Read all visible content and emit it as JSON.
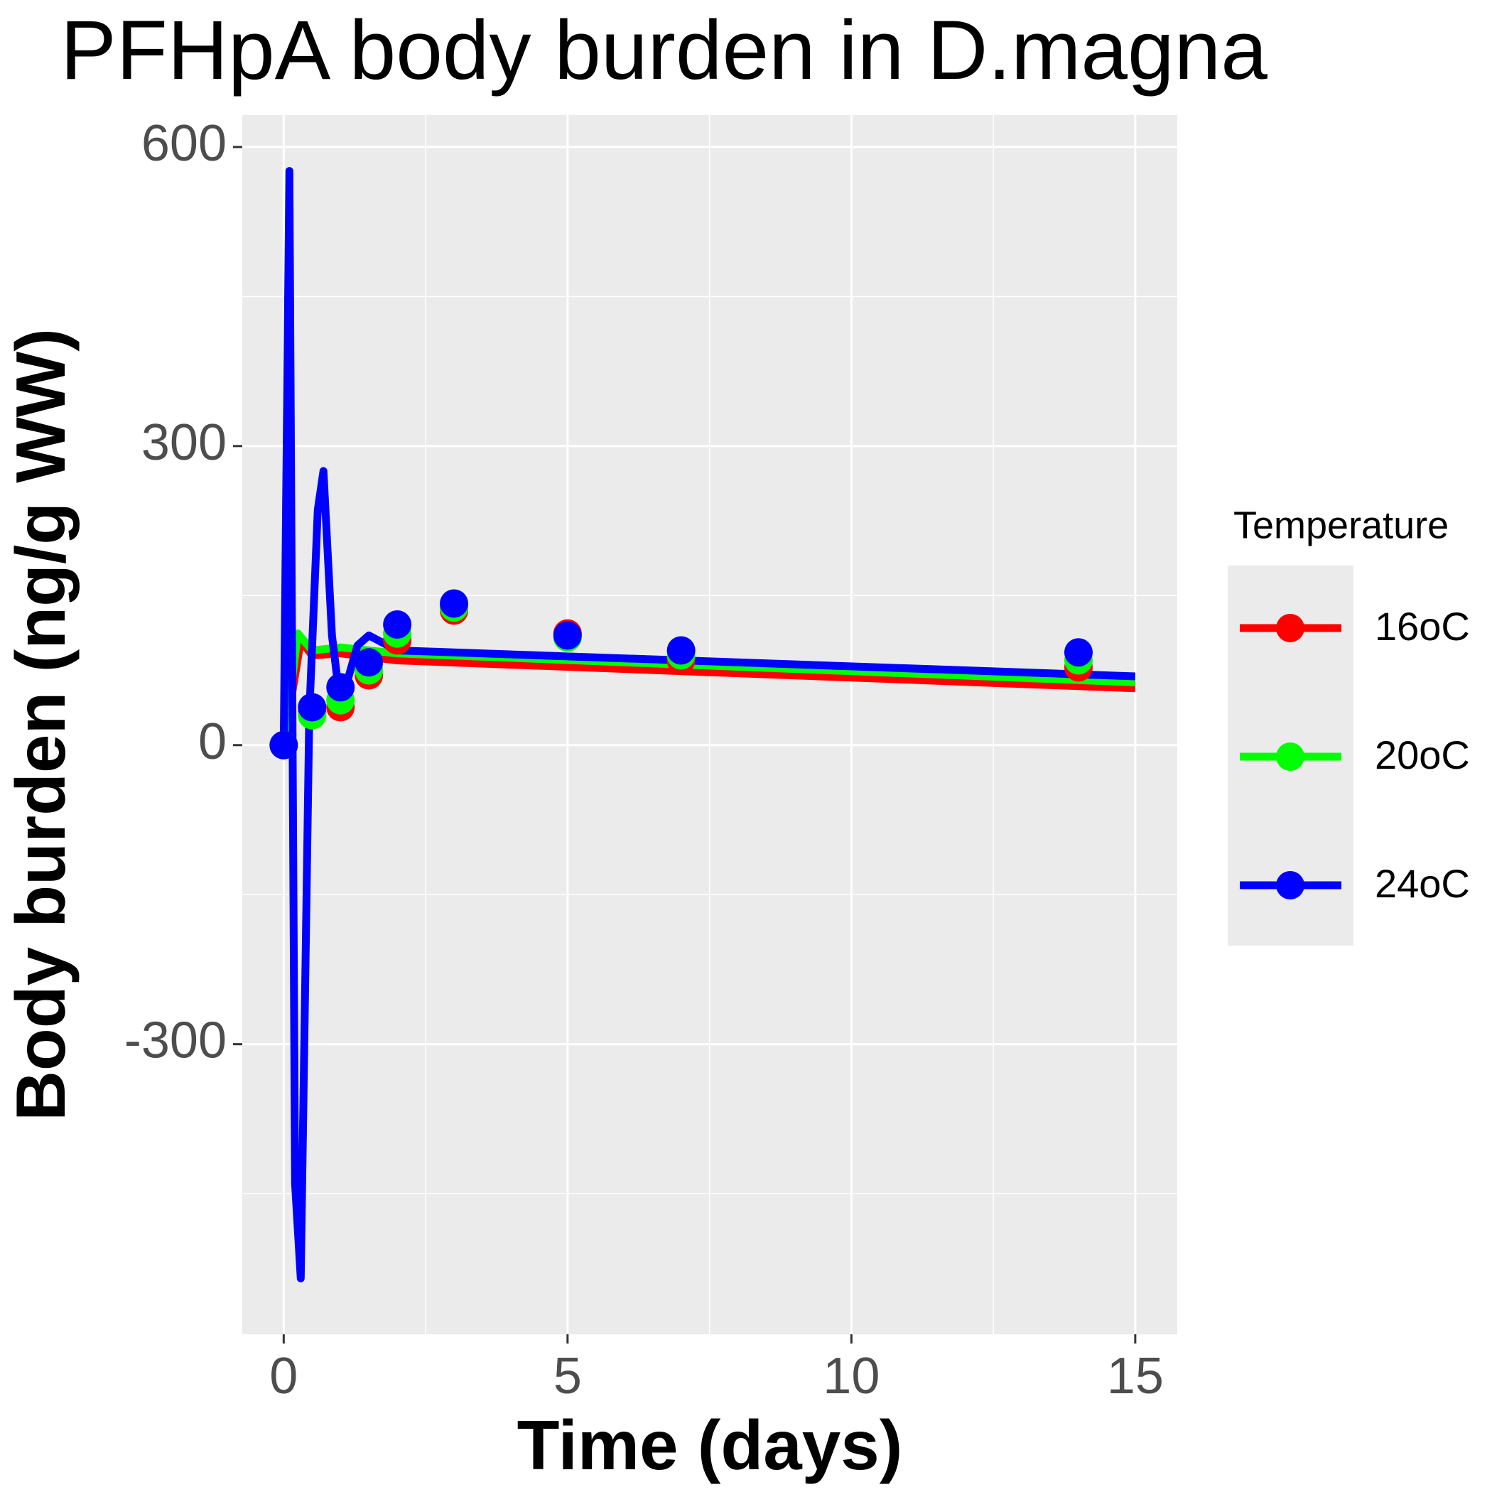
{
  "chart_data": {
    "type": "line",
    "title": "PFHpA body burden in D.magna",
    "x_label": "Time (days)",
    "y_label": "Body burden (ng/g WW)",
    "legend_title": "Temperature",
    "xlim": [
      -0.73,
      15.74
    ],
    "ylim": [
      -591,
      632
    ],
    "xticks": [
      0,
      5,
      10,
      15
    ],
    "yticks": [
      -300,
      0,
      300,
      600
    ],
    "x_minor_breaks": [
      2.5,
      7.5,
      12.5
    ],
    "y_minor_breaks": [
      -450,
      -150,
      150,
      450
    ],
    "grid": true,
    "legend": "right",
    "series": [
      {
        "name": "16oC",
        "color": "#ff0000",
        "x": [
          0,
          0.3,
          0.5,
          1,
          2,
          15
        ],
        "values": [
          0,
          105,
          90,
          92,
          85,
          57
        ],
        "points_x": [
          0,
          0.5,
          1,
          1.5,
          2,
          3,
          5,
          7,
          14
        ],
        "points_values": [
          0,
          33,
          38,
          70,
          105,
          135,
          112,
          85,
          78
        ]
      },
      {
        "name": "20oC",
        "color": "#00ff00",
        "x": [
          0,
          0.25,
          0.5,
          1,
          2,
          15
        ],
        "values": [
          0,
          112,
          95,
          98,
          92,
          63
        ],
        "points_x": [
          0,
          0.5,
          1,
          1.5,
          2,
          3,
          5,
          7,
          14
        ],
        "points_values": [
          0,
          30,
          45,
          75,
          112,
          138,
          108,
          90,
          85
        ]
      },
      {
        "name": "24oC",
        "color": "#0000ff",
        "x": [
          0,
          0.1,
          0.2,
          0.3,
          0.45,
          0.6,
          0.7,
          0.85,
          1,
          1.3,
          1.5,
          2,
          15
        ],
        "values": [
          0,
          576,
          -440,
          -535,
          30,
          236,
          275,
          110,
          40,
          100,
          110,
          95,
          69
        ],
        "points_x": [
          0,
          0.5,
          1,
          1.5,
          2,
          3,
          5,
          7,
          14
        ],
        "points_values": [
          0,
          38,
          58,
          83,
          121,
          142,
          110,
          95,
          93
        ]
      }
    ]
  }
}
